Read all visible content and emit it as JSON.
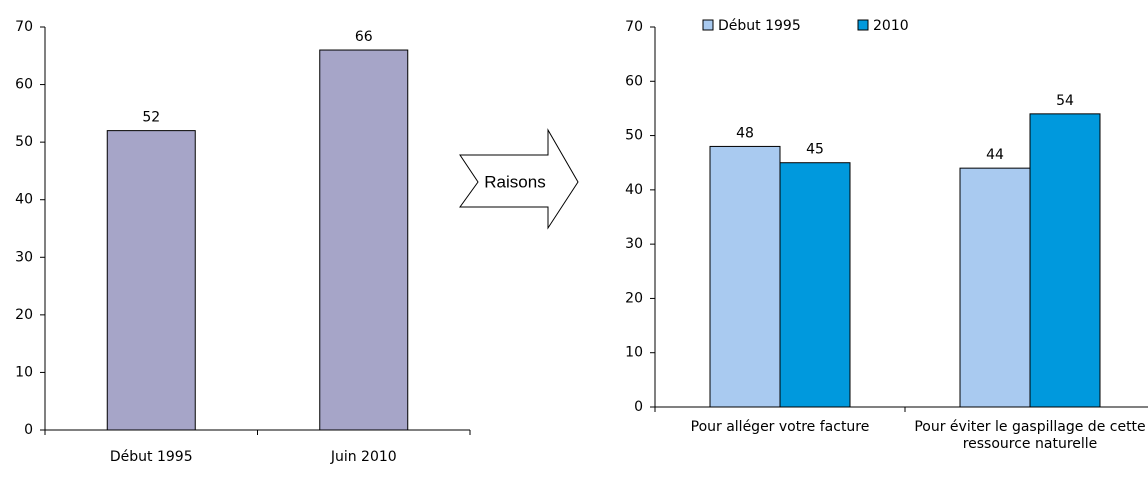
{
  "arrow_label": "Raisons",
  "chart_data": [
    {
      "type": "bar",
      "categories": [
        "Début 1995",
        "Juin 2010"
      ],
      "values": [
        52,
        66
      ],
      "color": "#a6a5c8",
      "ylim": [
        0,
        70
      ],
      "yticks": [
        0,
        10,
        20,
        30,
        40,
        50,
        60,
        70
      ]
    },
    {
      "type": "bar",
      "categories": [
        "Pour alléger votre facture",
        "Pour éviter le gaspillage de cette ressource naturelle"
      ],
      "series": [
        {
          "name": "Début 1995",
          "color": "#a9caf0",
          "values": [
            48,
            44
          ]
        },
        {
          "name": "2010",
          "color": "#0099dd",
          "values": [
            45,
            54
          ]
        }
      ],
      "ylim": [
        0,
        70
      ],
      "yticks": [
        0,
        10,
        20,
        30,
        40,
        50,
        60,
        70
      ],
      "legend": "top"
    }
  ]
}
